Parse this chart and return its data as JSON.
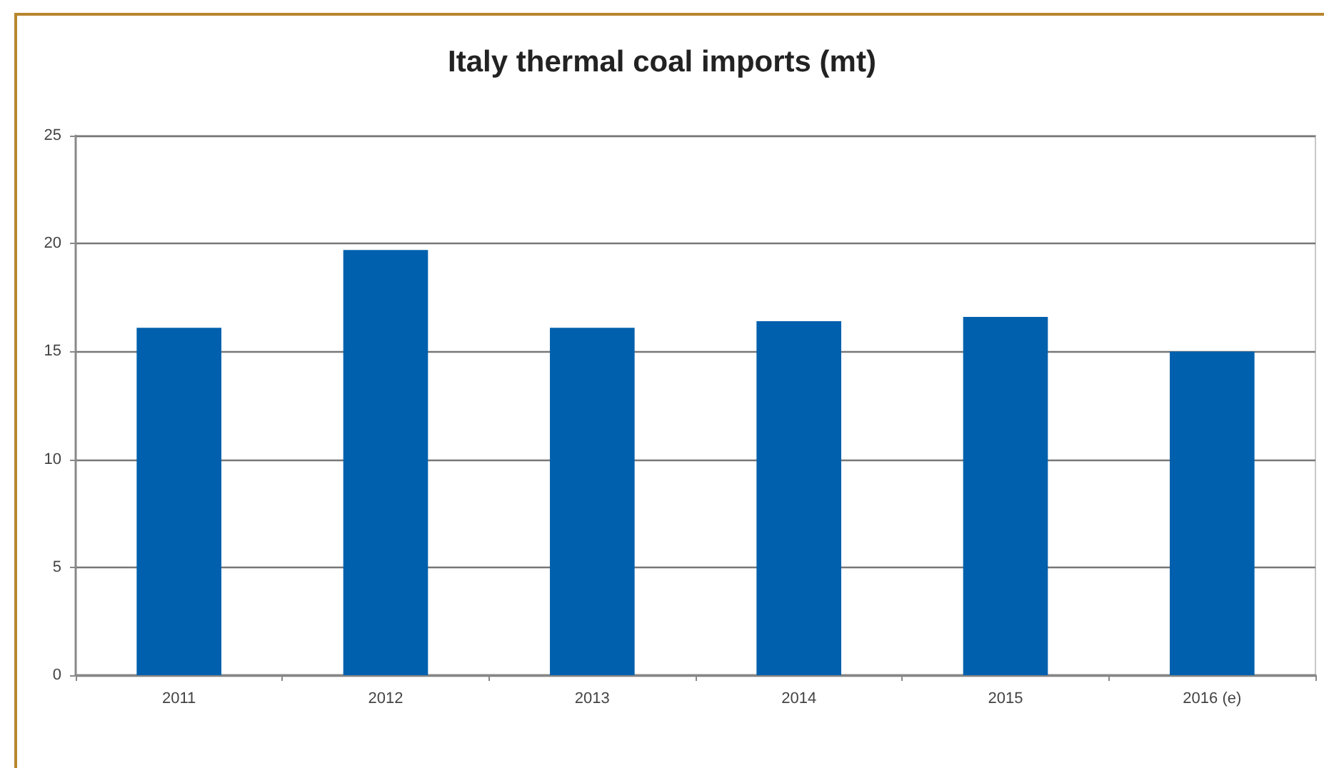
{
  "chart_data": {
    "type": "bar",
    "title": "Italy thermal coal imports (mt)",
    "categories": [
      "2011",
      "2012",
      "2013",
      "2014",
      "2015",
      "2016 (e)"
    ],
    "values": [
      16.1,
      19.7,
      16.1,
      16.4,
      16.6,
      15.0
    ],
    "color": "#0060ad",
    "ylim": [
      0,
      25
    ],
    "yticks": [
      0,
      5,
      10,
      15,
      20,
      25
    ],
    "grid": "y"
  }
}
